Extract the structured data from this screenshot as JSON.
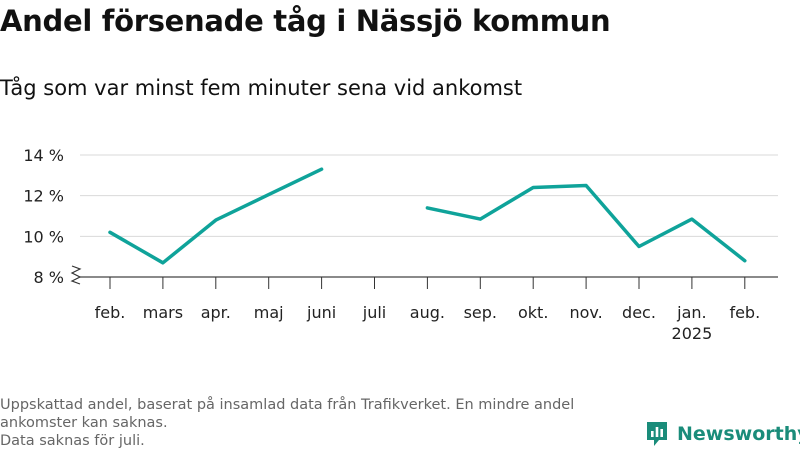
{
  "chart_data": {
    "type": "line",
    "title": "Andel försenade tåg i Nässjö kommun",
    "subtitle": "Tåg som var minst fem minuter sena vid ankomst",
    "categories": [
      "feb.",
      "mars",
      "apr.",
      "maj",
      "juni",
      "juli",
      "aug.",
      "sep.",
      "okt.",
      "nov.",
      "dec.",
      "jan.",
      "feb."
    ],
    "year_label": "2025",
    "year_label_index": 11,
    "series": [
      {
        "values": [
          10.2,
          8.7,
          10.8,
          12.05,
          13.3,
          null,
          11.4,
          10.85,
          12.4,
          12.5,
          9.5,
          10.85,
          8.8
        ]
      }
    ],
    "yticks": [
      8,
      10,
      12,
      14
    ],
    "ytick_labels": [
      "8 %",
      "10 %",
      "12 %",
      "14 %"
    ],
    "ylim": [
      8,
      14
    ],
    "axis_break": true,
    "grid": true,
    "line_color": "#0fa39a"
  },
  "footer": {
    "note1": "Uppskattad andel, baserat på insamlad data från Trafikverket. En mindre andel ankomster kan saknas.",
    "note2": "Data saknas för juli."
  },
  "brand": {
    "name": "Newsworthy",
    "icon": "bar-chart-icon",
    "color": "#1a8c7a"
  }
}
